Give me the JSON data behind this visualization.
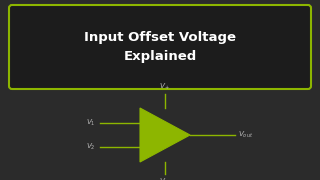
{
  "bg_color": "#2b2b2b",
  "title_box_color": "#1c1c1c",
  "title_border_color": "#8db600",
  "title_text": "Input Offset Voltage\nExplained",
  "title_text_color": "#ffffff",
  "opamp_fill_color": "#8db600",
  "opamp_edge_color": "#8db600",
  "line_color": "#8db600",
  "label_color": "#bbbbbb",
  "v1_label": "$V_1$",
  "v2_label": "$V_2$",
  "vout_label": "$V_{out}$",
  "vplus_label": "$V_+$",
  "vminus_label": "$V_-$",
  "title_fontsize": 9.5,
  "label_fontsize": 5.2
}
